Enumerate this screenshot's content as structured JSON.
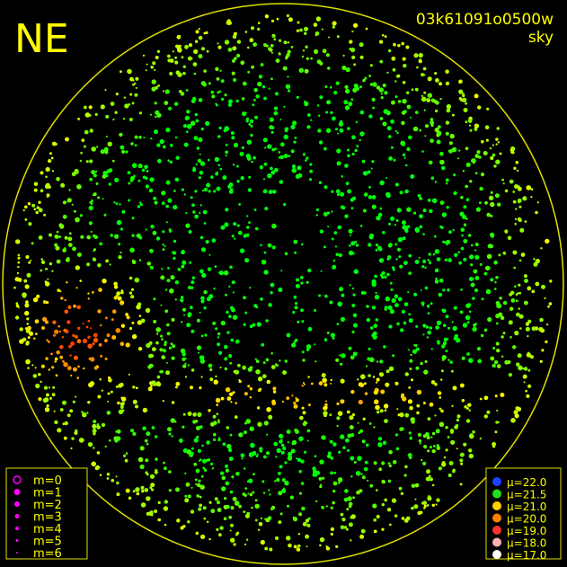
{
  "header": {
    "direction": "NE",
    "frame_id": "03k61091o0500w",
    "image_type": "sky"
  },
  "magnitude_legend": [
    "m=0",
    "m=1",
    "m=2",
    "m=3",
    "m=4",
    "m=5",
    "m=6"
  ],
  "surface_brightness_legend": [
    {
      "label": "μ=22.0",
      "color": "#2040ff"
    },
    {
      "label": "μ=21.5",
      "color": "#20e020"
    },
    {
      "label": "μ=21.0",
      "color": "#ffd000"
    },
    {
      "label": "μ=20.0",
      "color": "#ff8000"
    },
    {
      "label": "μ=19.0",
      "color": "#ff3030"
    },
    {
      "label": "μ=18.0",
      "color": "#ffb0b0"
    },
    {
      "label": "μ=17.0",
      "color": "#ffffff"
    }
  ]
}
